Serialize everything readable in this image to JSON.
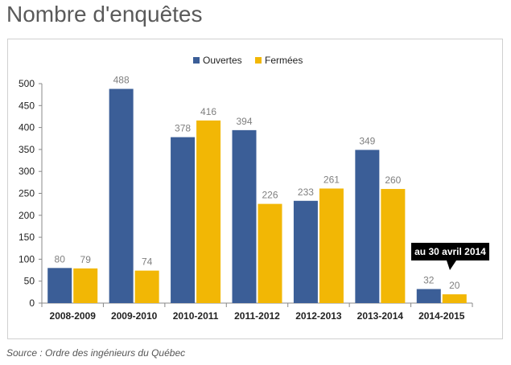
{
  "title": "Nombre d'enquêtes",
  "source": "Source : Ordre des ingénieurs du Québec",
  "colors": {
    "open": "#3b5e97",
    "closed": "#f2b705",
    "axis": "#888888",
    "value_label": "#7f7f7f"
  },
  "annotation": "au 30 avril 2014",
  "chart_data": {
    "type": "bar",
    "categories": [
      "2008-2009",
      "2009-2010",
      "2010-2011",
      "2011-2012",
      "2012-2013",
      "2013-2014",
      "2014-2015"
    ],
    "series": [
      {
        "name": "Ouvertes",
        "values": [
          80,
          488,
          378,
          394,
          233,
          349,
          32
        ]
      },
      {
        "name": "Fermées",
        "values": [
          79,
          74,
          416,
          226,
          261,
          260,
          20
        ]
      }
    ],
    "ylim": [
      0,
      500
    ],
    "yticks": [
      0,
      50,
      100,
      150,
      200,
      250,
      300,
      350,
      400,
      450,
      500
    ],
    "legend": "top-center",
    "grid": false
  }
}
